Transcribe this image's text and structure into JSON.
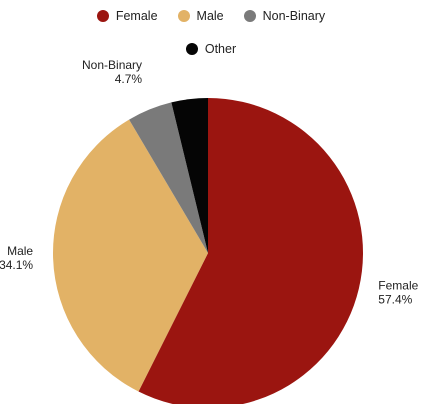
{
  "chart_data": {
    "type": "pie",
    "title": "",
    "categories": [
      "Female",
      "Male",
      "Non-Binary",
      "Other"
    ],
    "values": [
      57.4,
      34.1,
      4.7,
      3.8
    ],
    "value_labels": [
      "57.4%",
      "34.1%",
      "4.7%",
      ""
    ],
    "colors": [
      "#9b1510",
      "#e2b266",
      "#7a7a7a",
      "#050505"
    ],
    "start_angle_deg": 0,
    "direction": "clockwise",
    "legend_position": "top",
    "legend": {
      "row1": [
        {
          "label": "Female",
          "color": "#9b1510"
        },
        {
          "label": "Male",
          "color": "#e2b266"
        },
        {
          "label": "Non-Binary",
          "color": "#7a7a7a"
        }
      ],
      "row2": [
        {
          "label": "Other",
          "color": "#050505"
        }
      ]
    }
  }
}
